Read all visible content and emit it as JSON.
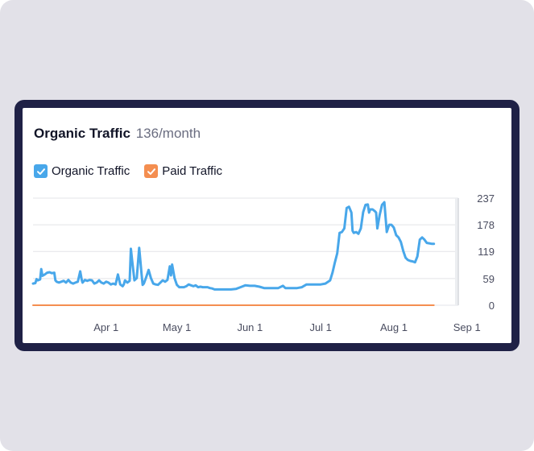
{
  "colors": {
    "organic": "#48a7ea",
    "paid": "#f48e50",
    "grid": "#e3e4e8"
  },
  "header": {
    "title": "Organic Traffic",
    "value": "136/month"
  },
  "legend": [
    {
      "label": "Organic Traffic",
      "color": "#48a7ea",
      "icon": "check-icon"
    },
    {
      "label": "Paid Traffic",
      "color": "#f48e50",
      "icon": "check-icon"
    }
  ],
  "chart_data": {
    "type": "line",
    "title": "Organic Traffic 136/month",
    "xlabel": "",
    "ylabel": "",
    "ylim": [
      0,
      237
    ],
    "y_ticks": [
      "237",
      "178",
      "119",
      "59",
      "0"
    ],
    "y_tick_values": [
      237,
      178,
      119,
      59,
      0
    ],
    "x_ticks": [
      "Apr 1",
      "May 1",
      "Jun 1",
      "Jul 1",
      "Aug 1",
      "Sep 1"
    ],
    "x_tick_days": [
      31,
      61,
      92,
      122,
      153,
      184
    ],
    "x_range_days": [
      0,
      180
    ],
    "series": [
      {
        "name": "Organic Traffic",
        "color": "#48a7ea",
        "points": [
          [
            0,
            48
          ],
          [
            1,
            49
          ],
          [
            1.5,
            58
          ],
          [
            2,
            55
          ],
          [
            3,
            57
          ],
          [
            3.5,
            80
          ],
          [
            4,
            65
          ],
          [
            5,
            68
          ],
          [
            6,
            72
          ],
          [
            7,
            73
          ],
          [
            8,
            71
          ],
          [
            9,
            72
          ],
          [
            9.5,
            55
          ],
          [
            10,
            52
          ],
          [
            11,
            50
          ],
          [
            12,
            52
          ],
          [
            13,
            54
          ],
          [
            14,
            50
          ],
          [
            15,
            56
          ],
          [
            16,
            50
          ],
          [
            17,
            48
          ],
          [
            18,
            50
          ],
          [
            19,
            52
          ],
          [
            20,
            75
          ],
          [
            20.7,
            55
          ],
          [
            21,
            50
          ],
          [
            22,
            56
          ],
          [
            23,
            54
          ],
          [
            24,
            56
          ],
          [
            25,
            55
          ],
          [
            26,
            48
          ],
          [
            27,
            50
          ],
          [
            28,
            55
          ],
          [
            29,
            50
          ],
          [
            30,
            48
          ],
          [
            31,
            52
          ],
          [
            32,
            50
          ],
          [
            33,
            46
          ],
          [
            34,
            48
          ],
          [
            35,
            46
          ],
          [
            36,
            68
          ],
          [
            37,
            46
          ],
          [
            38,
            42
          ],
          [
            38.5,
            46
          ],
          [
            39,
            55
          ],
          [
            40,
            50
          ],
          [
            41,
            54
          ],
          [
            41.5,
            125
          ],
          [
            42,
            100
          ],
          [
            43,
            55
          ],
          [
            44,
            60
          ],
          [
            45,
            127
          ],
          [
            45.5,
            100
          ],
          [
            46,
            70
          ],
          [
            46.5,
            45
          ],
          [
            47,
            48
          ],
          [
            48,
            62
          ],
          [
            49,
            78
          ],
          [
            50,
            60
          ],
          [
            51,
            48
          ],
          [
            52,
            46
          ],
          [
            53,
            45
          ],
          [
            54,
            50
          ],
          [
            55,
            55
          ],
          [
            56,
            52
          ],
          [
            57,
            56
          ],
          [
            58,
            86
          ],
          [
            58.5,
            66
          ],
          [
            59,
            90
          ],
          [
            60,
            60
          ],
          [
            61,
            45
          ],
          [
            62,
            40
          ],
          [
            63,
            40
          ],
          [
            64,
            40
          ],
          [
            65,
            42
          ],
          [
            66,
            46
          ],
          [
            67,
            44
          ],
          [
            68,
            42
          ],
          [
            69,
            44
          ],
          [
            70,
            40
          ],
          [
            71,
            41
          ],
          [
            72,
            40
          ],
          [
            73,
            40
          ],
          [
            74,
            40
          ],
          [
            75,
            38
          ],
          [
            76,
            37
          ],
          [
            77,
            35
          ],
          [
            78,
            35
          ],
          [
            80,
            35
          ],
          [
            82,
            35
          ],
          [
            84,
            35
          ],
          [
            86,
            36
          ],
          [
            88,
            40
          ],
          [
            90,
            44
          ],
          [
            92,
            43
          ],
          [
            94,
            43
          ],
          [
            96,
            41
          ],
          [
            98,
            38
          ],
          [
            100,
            38
          ],
          [
            102,
            38
          ],
          [
            104,
            38
          ],
          [
            106,
            43
          ],
          [
            107,
            38
          ],
          [
            108,
            38
          ],
          [
            110,
            38
          ],
          [
            112,
            38
          ],
          [
            114,
            40
          ],
          [
            116,
            46
          ],
          [
            118,
            46
          ],
          [
            120,
            46
          ],
          [
            122,
            46
          ],
          [
            124,
            48
          ],
          [
            126,
            55
          ],
          [
            127,
            72
          ],
          [
            128,
            95
          ],
          [
            129,
            115
          ],
          [
            130,
            160
          ],
          [
            131,
            162
          ],
          [
            132,
            170
          ],
          [
            133,
            215
          ],
          [
            134,
            218
          ],
          [
            135,
            205
          ],
          [
            135.5,
            165
          ],
          [
            136,
            160
          ],
          [
            137,
            162
          ],
          [
            138,
            158
          ],
          [
            139,
            170
          ],
          [
            140,
            206
          ],
          [
            141,
            222
          ],
          [
            142,
            223
          ],
          [
            142.5,
            205
          ],
          [
            143,
            212
          ],
          [
            144,
            212
          ],
          [
            145,
            208
          ],
          [
            145.5,
            205
          ],
          [
            146,
            170
          ],
          [
            147,
            200
          ],
          [
            148,
            222
          ],
          [
            149,
            228
          ],
          [
            150,
            162
          ],
          [
            151,
            178
          ],
          [
            152,
            178
          ],
          [
            153,
            172
          ],
          [
            154,
            155
          ],
          [
            155,
            150
          ],
          [
            156,
            140
          ],
          [
            157,
            120
          ],
          [
            158,
            105
          ],
          [
            159,
            100
          ],
          [
            160,
            98
          ],
          [
            161,
            97
          ],
          [
            162,
            95
          ],
          [
            163,
            108
          ],
          [
            164,
            145
          ],
          [
            165,
            150
          ],
          [
            166,
            145
          ],
          [
            167,
            138
          ],
          [
            168,
            137
          ],
          [
            169,
            136
          ],
          [
            170,
            136
          ]
        ]
      },
      {
        "name": "Paid Traffic",
        "color": "#f48e50",
        "points": [
          [
            0,
            0
          ],
          [
            170,
            0
          ]
        ]
      }
    ]
  }
}
